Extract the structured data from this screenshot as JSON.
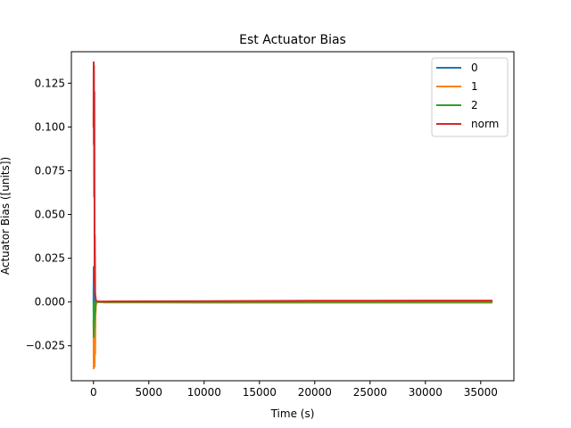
{
  "chart_data": {
    "type": "line",
    "title": "Est Actuator Bias",
    "xlabel": "Time (s)",
    "ylabel": "Actuator Bias ([units])",
    "xlim": [
      -2000,
      38000
    ],
    "ylim": [
      -0.045,
      0.143
    ],
    "xticks": [
      0,
      5000,
      10000,
      15000,
      20000,
      25000,
      30000,
      35000
    ],
    "xtick_labels": [
      "0",
      "5000",
      "10000",
      "15000",
      "20000",
      "25000",
      "30000",
      "35000"
    ],
    "yticks": [
      -0.025,
      0.0,
      0.025,
      0.05,
      0.075,
      0.1,
      0.125
    ],
    "ytick_labels": [
      "−0.025",
      "0.000",
      "0.025",
      "0.050",
      "0.075",
      "0.100",
      "0.125"
    ],
    "grid": false,
    "legend_position": "top-right",
    "series": [
      {
        "name": "0",
        "color": "#1f77b4",
        "x": [
          0,
          20,
          40,
          60,
          80,
          100,
          130,
          160,
          200,
          300,
          500,
          1000,
          5000,
          10000,
          15000,
          20000,
          25000,
          30000,
          36000
        ],
        "y": [
          0.0,
          0.02,
          -0.005,
          0.01,
          -0.002,
          0.003,
          -0.001,
          0.001,
          0.0,
          0.0,
          0.0,
          0.0,
          0.0,
          0.0,
          0.0,
          0.0,
          0.0,
          0.0,
          0.0
        ]
      },
      {
        "name": "1",
        "color": "#ff7f0e",
        "x": [
          0,
          20,
          40,
          60,
          80,
          100,
          120,
          150,
          180,
          220,
          300,
          500,
          1000,
          5000,
          10000,
          15000,
          20000,
          25000,
          30000,
          36000
        ],
        "y": [
          -0.01,
          -0.038,
          -0.02,
          -0.036,
          -0.015,
          -0.037,
          -0.012,
          -0.03,
          -0.008,
          -0.002,
          0.0,
          0.0,
          -0.0003,
          -0.0003,
          -0.0004,
          -0.0004,
          -0.0004,
          -0.0004,
          -0.0004,
          -0.0004
        ]
      },
      {
        "name": "2",
        "color": "#2ca02c",
        "x": [
          0,
          20,
          40,
          60,
          80,
          100,
          130,
          160,
          200,
          300,
          500,
          1000,
          5000,
          10000,
          15000,
          20000,
          25000,
          30000,
          36000
        ],
        "y": [
          0.0,
          -0.02,
          -0.005,
          -0.015,
          -0.003,
          -0.01,
          -0.002,
          -0.006,
          0.0,
          0.0,
          0.0,
          0.0,
          0.0,
          0.0,
          0.0,
          0.0,
          0.0,
          0.0,
          0.0
        ]
      },
      {
        "name": "norm",
        "color": "#d62728",
        "x": [
          0,
          15,
          30,
          45,
          60,
          80,
          100,
          120,
          150,
          180,
          220,
          300,
          500,
          1000,
          5000,
          10000,
          15000,
          20000,
          25000,
          30000,
          36000
        ],
        "y": [
          0.1,
          0.137,
          0.09,
          0.135,
          0.06,
          0.12,
          0.01,
          0.038,
          0.005,
          0.003,
          0.001,
          0.0005,
          0.0003,
          0.0003,
          0.0004,
          0.0005,
          0.0006,
          0.0007,
          0.0007,
          0.0008,
          0.0008
        ]
      }
    ]
  }
}
